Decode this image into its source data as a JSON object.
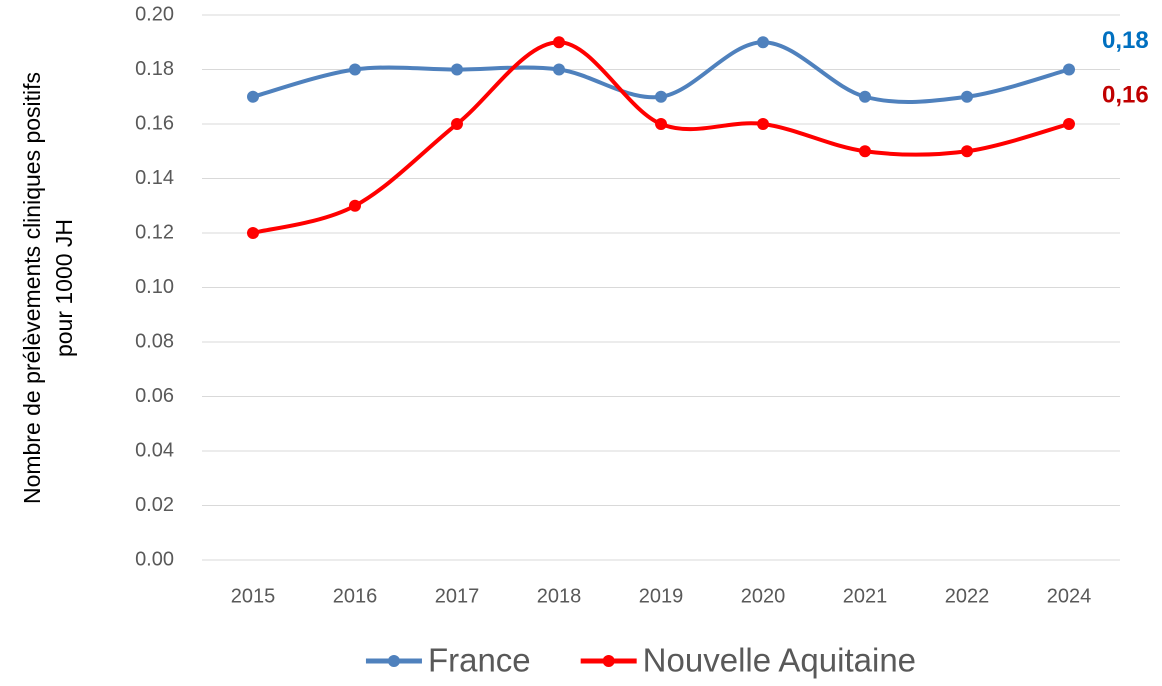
{
  "chart_data": {
    "type": "line",
    "ylabel": [
      "Nombre de prélèvements cliniques positifs",
      "pour 1000 JH"
    ],
    "categories": [
      "2015",
      "2016",
      "2017",
      "2018",
      "2019",
      "2020",
      "2021",
      "2022",
      "2024"
    ],
    "series": [
      {
        "name": "France",
        "color": "#4f81bd",
        "label_color": "#0070c0",
        "values": [
          0.17,
          0.18,
          0.18,
          0.18,
          0.17,
          0.19,
          0.17,
          0.17,
          0.18
        ],
        "value_labels": [
          null,
          null,
          null,
          null,
          null,
          null,
          null,
          null,
          "0,18"
        ]
      },
      {
        "name": "Nouvelle Aquitaine",
        "color": "#ff0000",
        "label_color": "#c00000",
        "values": [
          0.12,
          0.13,
          0.16,
          0.19,
          0.16,
          0.16,
          0.15,
          0.15,
          0.16
        ],
        "value_labels": [
          null,
          null,
          null,
          null,
          null,
          null,
          null,
          null,
          "0,16"
        ]
      }
    ],
    "ylim": [
      0,
      0.2
    ],
    "yticks": [
      {
        "value": 0,
        "label": "0.00"
      },
      {
        "value": 0.02,
        "label": "0.02"
      },
      {
        "value": 0.04,
        "label": "0.04"
      },
      {
        "value": 0.06,
        "label": "0.06"
      },
      {
        "value": 0.08,
        "label": "0.08"
      },
      {
        "value": 0.1,
        "label": "0.10"
      },
      {
        "value": 0.12,
        "label": "0.12"
      },
      {
        "value": 0.14,
        "label": "0.14"
      },
      {
        "value": 0.16,
        "label": "0.16"
      },
      {
        "value": 0.18,
        "label": "0.18"
      },
      {
        "value": 0.2,
        "label": "0.20"
      }
    ],
    "grid": true,
    "smooth": true,
    "legend": "bottom"
  }
}
